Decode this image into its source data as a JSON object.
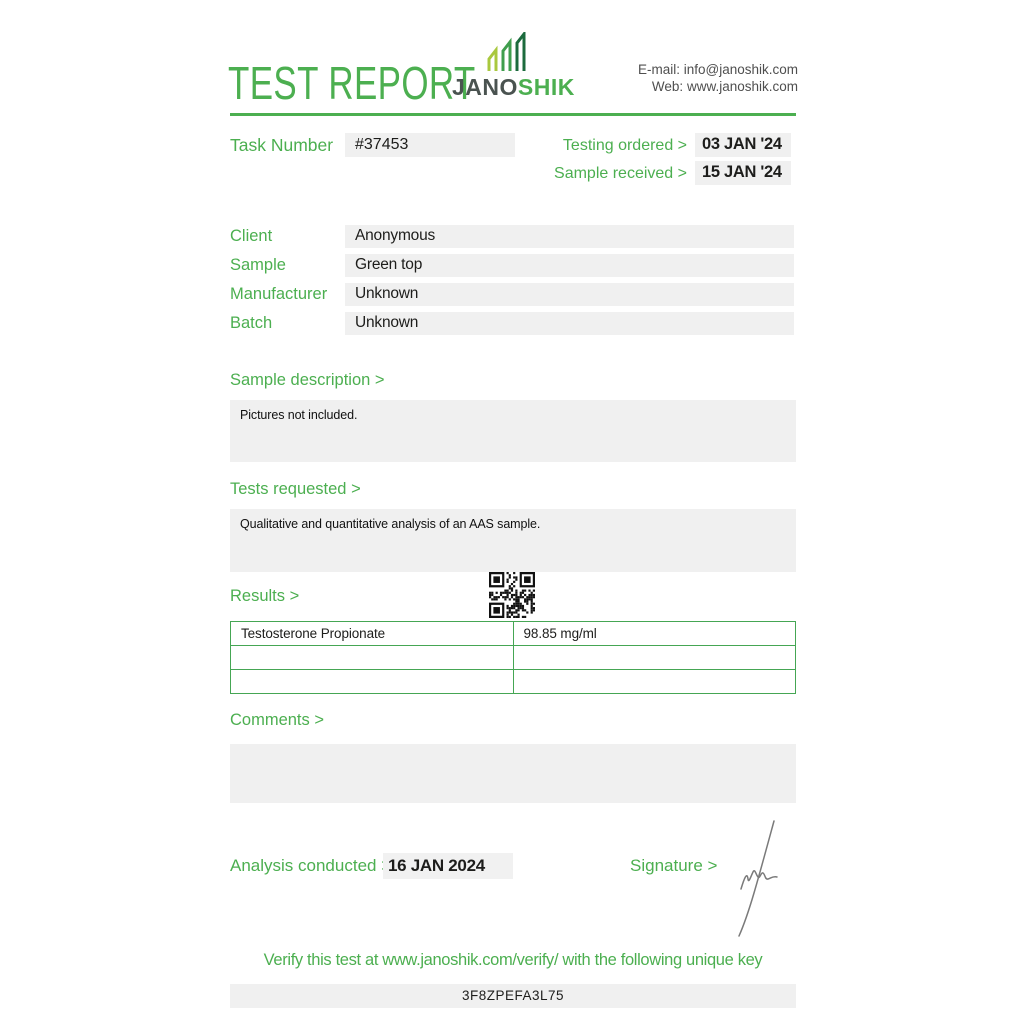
{
  "colors": {
    "accent_green": "#4CAF50",
    "table_border_green": "#45a654",
    "logo_dark": "#4a5350",
    "text_dark": "#1d1d1b",
    "box_gray": "#f0f0f0",
    "signature_gray": "#777777"
  },
  "header": {
    "title": "TEST REPORT",
    "logo_text_dark": "JANO",
    "logo_text_green": "SHIK",
    "email_label": "E-mail:",
    "email_value": "info@janoshik.com",
    "web_label": "Web:",
    "web_value": "www.janoshik.com"
  },
  "task": {
    "label": "Task Number",
    "value": "#37453"
  },
  "dates": {
    "ordered_label": "Testing ordered  >",
    "ordered_value": "03 JAN '24",
    "received_label": "Sample received >",
    "received_value": "15 JAN '24"
  },
  "info": {
    "rows": [
      {
        "label": "Client",
        "value": "Anonymous"
      },
      {
        "label": "Sample",
        "value": "Green top"
      },
      {
        "label": "Manufacturer",
        "value": "Unknown"
      },
      {
        "label": "Batch",
        "value": "Unknown"
      }
    ]
  },
  "sample_description": {
    "label": "Sample description >",
    "text": "Pictures not included."
  },
  "tests_requested": {
    "label": "Tests requested >",
    "text": "Qualitative and quantitative analysis of an AAS sample."
  },
  "results": {
    "label": "Results >",
    "qr_icon": "qr-code",
    "table_rows": [
      {
        "analyte": "Testosterone Propionate",
        "result": "98.85 mg/ml"
      },
      {
        "analyte": "",
        "result": ""
      },
      {
        "analyte": "",
        "result": ""
      }
    ]
  },
  "comments": {
    "label": "Comments >",
    "text": ""
  },
  "footer": {
    "analysis_label": "Analysis conducted >",
    "analysis_value": "16 JAN 2024",
    "signature_label": "Signature >",
    "signature_icon": "handwritten-signature",
    "verify_text": "Verify this test at www.janoshik.com/verify/ with the following unique key",
    "unique_key": "3F8ZPEFA3L75"
  }
}
